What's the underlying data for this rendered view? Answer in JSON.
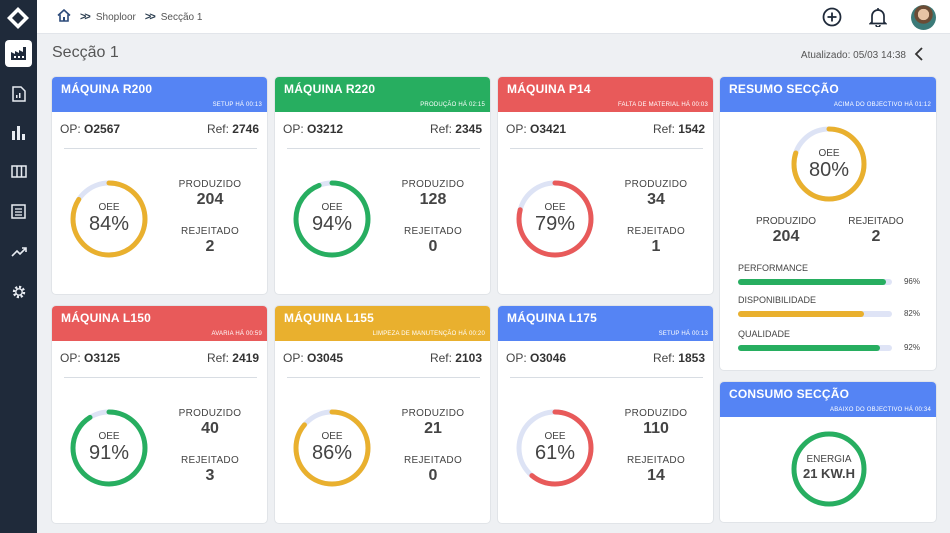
{
  "breadcrumb": {
    "home_icon": "home-icon",
    "level1": "Shoploor",
    "level2": "Secção 1"
  },
  "page": {
    "title": "Secção 1",
    "updated": "Atualizado: 05/03 14:38"
  },
  "colors": {
    "blue": "#5584f4",
    "green": "#27ae60",
    "red": "#e85a5a",
    "yellow": "#e9b02e",
    "track": "#dde3f5"
  },
  "labels": {
    "op": "OP:",
    "ref": "Ref:",
    "oee": "OEE",
    "produzido": "PRODUZIDO",
    "rejeitado": "REJEITADO"
  },
  "machines": [
    {
      "name": "MÁQUINA R200",
      "status": "SETUP HÁ 00:13",
      "color": "blue",
      "op": "O2567",
      "ref": "2746",
      "oee": "84%",
      "oee_fraction": 0.84,
      "gauge_color": "yellow",
      "produzido": "204",
      "rejeitado": "2"
    },
    {
      "name": "MÁQUINA R220",
      "status": "PRODUÇÃO HÁ 02:15",
      "color": "green",
      "op": "O3212",
      "ref": "2345",
      "oee": "94%",
      "oee_fraction": 0.94,
      "gauge_color": "green",
      "produzido": "128",
      "rejeitado": "0"
    },
    {
      "name": "MÁQUINA P14",
      "status": "FALTA DE MATERIAL HÁ 00:03",
      "color": "red",
      "op": "O3421",
      "ref": "1542",
      "oee": "79%",
      "oee_fraction": 0.79,
      "gauge_color": "red",
      "produzido": "34",
      "rejeitado": "1"
    },
    {
      "name": "MÁQUINA L150",
      "status": "AVARIA HÁ 00:59",
      "color": "red",
      "op": "O3125",
      "ref": "2419",
      "oee": "91%",
      "oee_fraction": 0.91,
      "gauge_color": "green",
      "produzido": "40",
      "rejeitado": "3"
    },
    {
      "name": "MÁQUINA L155",
      "status": "LIMPEZA DE MANUTENÇÃO HÁ 00:20",
      "color": "yellow",
      "op": "O3045",
      "ref": "2103",
      "oee": "86%",
      "oee_fraction": 0.86,
      "gauge_color": "yellow",
      "produzido": "21",
      "rejeitado": "0"
    },
    {
      "name": "MÁQUINA L175",
      "status": "SETUP HÁ 00:13",
      "color": "blue",
      "op": "O3046",
      "ref": "1853",
      "oee": "61%",
      "oee_fraction": 0.61,
      "gauge_color": "red",
      "produzido": "110",
      "rejeitado": "14"
    }
  ],
  "resumo": {
    "title": "RESUMO SECÇÃO",
    "status": "ACIMA DO OBJECTIVO HÁ 01:12",
    "color": "blue",
    "oee": "80%",
    "oee_fraction": 0.8,
    "gauge_color": "yellow",
    "produzido": "204",
    "rejeitado": "2",
    "bars": [
      {
        "label": "PERFORMANCE",
        "pct": "96%",
        "fraction": 0.96,
        "color": "green"
      },
      {
        "label": "DISPONIBILIDADE",
        "pct": "82%",
        "fraction": 0.82,
        "color": "yellow"
      },
      {
        "label": "QUALIDADE",
        "pct": "92%",
        "fraction": 0.92,
        "color": "green"
      }
    ]
  },
  "consumo": {
    "title": "CONSUMO SECÇÃO",
    "status": "ABAIXO DO OBJECTIVO HÁ 00:34",
    "color": "blue",
    "label": "ENERGIA",
    "value": "21 KW.H",
    "fraction": 1.0,
    "gauge_color": "green"
  }
}
